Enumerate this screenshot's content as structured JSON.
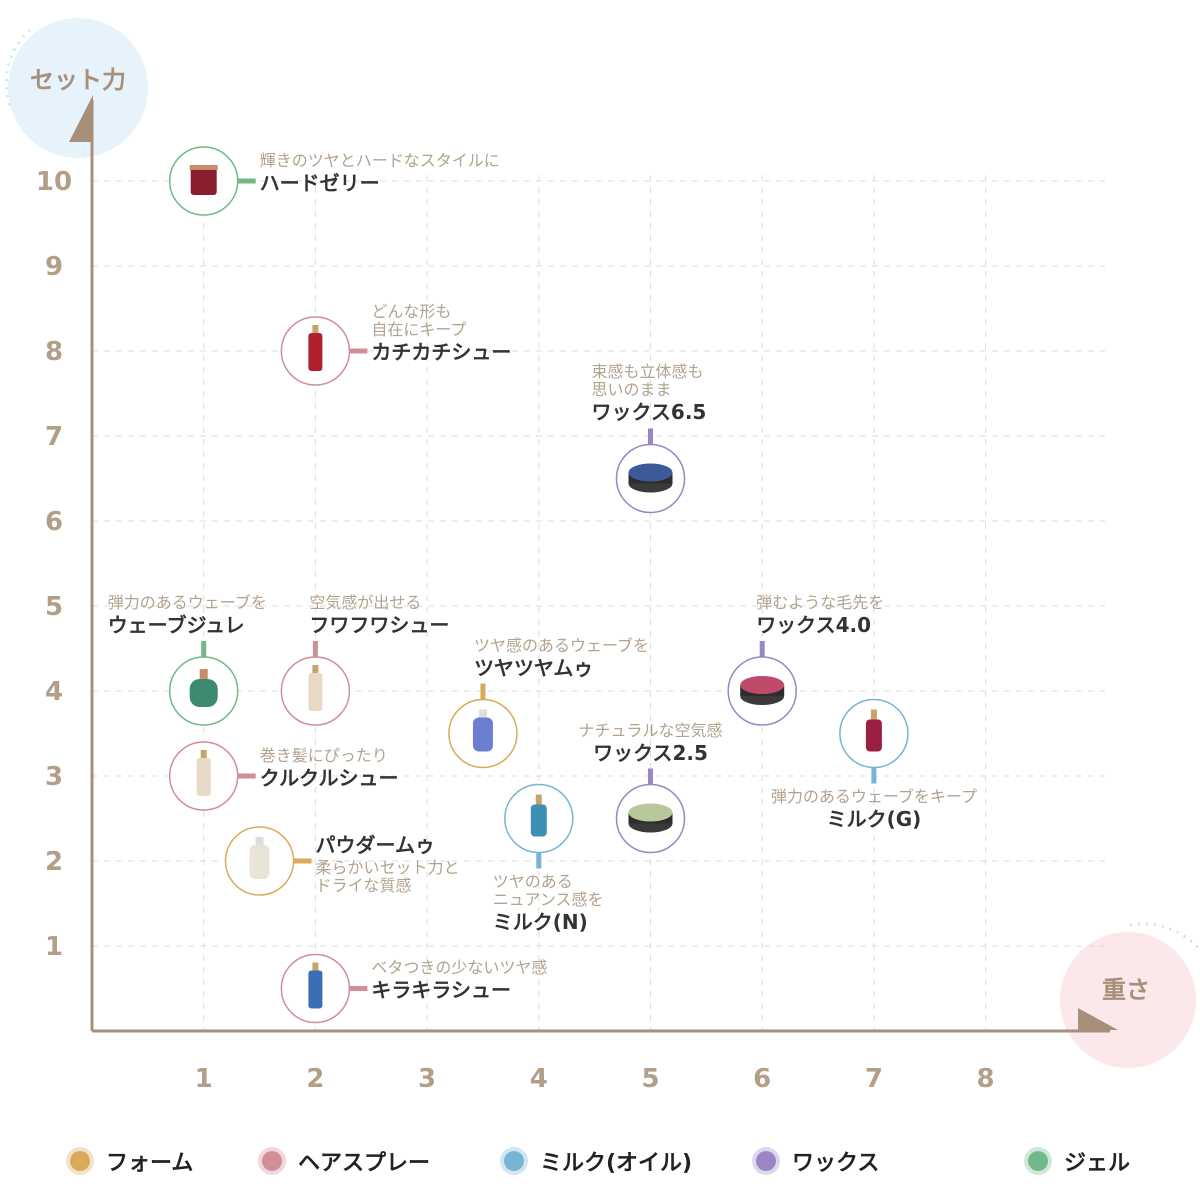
{
  "chart_data": {
    "type": "scatter",
    "xlabel": "重さ",
    "ylabel": "セット力",
    "xlim": [
      0,
      9
    ],
    "ylim": [
      0,
      10.5
    ],
    "xticks": [
      "1",
      "2",
      "3",
      "4",
      "5",
      "6",
      "7",
      "8"
    ],
    "yticks": [
      "1",
      "2",
      "3",
      "4",
      "5",
      "6",
      "7",
      "8",
      "9",
      "10"
    ],
    "grid": true,
    "legend_position": "bottom",
    "categories": [
      {
        "key": "foam",
        "label": "フォーム",
        "color": "#d9aa5a"
      },
      {
        "key": "spray",
        "label": "ヘアスプレー",
        "color": "#d08e98"
      },
      {
        "key": "milk",
        "label": "ミルク(オイル)",
        "color": "#78b4d4"
      },
      {
        "key": "wax",
        "label": "ワックス",
        "color": "#9a86c4"
      },
      {
        "key": "gel",
        "label": "ジェル",
        "color": "#72b98a"
      }
    ],
    "points": [
      {
        "name": "ハードゼリー",
        "desc": "輝きのツヤとハードなスタイルに",
        "category": "gel",
        "x": 1,
        "y": 10
      },
      {
        "name": "カチカチシュー",
        "desc": "どんな形も\n自在にキープ",
        "category": "spray",
        "x": 2,
        "y": 8
      },
      {
        "name": "ワックス6.5",
        "desc": "束感も立体感も\n思いのまま",
        "category": "wax",
        "x": 5,
        "y": 6.5
      },
      {
        "name": "ウェーブジュレ",
        "desc": "弾力のあるウェーブを",
        "category": "gel",
        "x": 1,
        "y": 4
      },
      {
        "name": "フワフワシュー",
        "desc": "空気感が出せる",
        "category": "spray",
        "x": 2,
        "y": 4
      },
      {
        "name": "ツヤツヤムゥ",
        "desc": "ツヤ感のあるウェーブを",
        "category": "foam",
        "x": 3.5,
        "y": 3.5
      },
      {
        "name": "ワックス4.0",
        "desc": "弾むような毛先を",
        "category": "wax",
        "x": 6,
        "y": 4
      },
      {
        "name": "ミルク(G)",
        "desc": "弾力のあるウェーブをキープ",
        "category": "milk",
        "x": 7,
        "y": 3.5
      },
      {
        "name": "クルクルシュー",
        "desc": "巻き髪にぴったり",
        "category": "spray",
        "x": 1,
        "y": 3
      },
      {
        "name": "ワックス2.5",
        "desc": "ナチュラルな空気感",
        "category": "wax",
        "x": 5,
        "y": 2.5
      },
      {
        "name": "ミルク(N)",
        "desc": "ツヤのある\nニュアンス感を",
        "category": "milk",
        "x": 4,
        "y": 2.5
      },
      {
        "name": "パウダームゥ",
        "desc": "柔らかいセット力と\nドライな質感",
        "category": "foam",
        "x": 1.5,
        "y": 2
      },
      {
        "name": "キラキラシュー",
        "desc": "ベタつきの少ないツヤ感",
        "category": "spray",
        "x": 2,
        "y": 0.5
      }
    ]
  }
}
